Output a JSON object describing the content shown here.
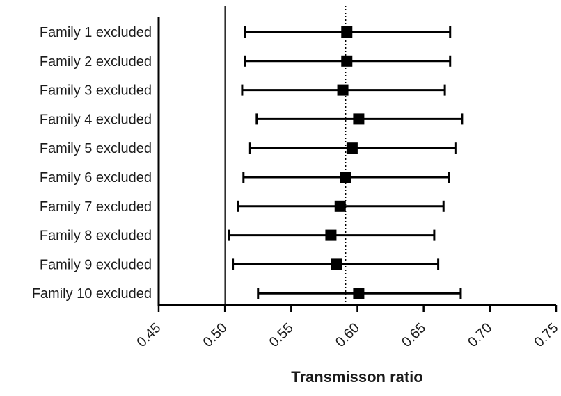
{
  "chart_data": {
    "type": "forest",
    "xlabel": "Transmisson ratio",
    "ylabel": "",
    "xlim": [
      0.45,
      0.75
    ],
    "x_ticks": [
      0.45,
      0.5,
      0.55,
      0.6,
      0.65,
      0.7,
      0.75
    ],
    "x_tick_labels": [
      "0.45",
      "0.50",
      "0.55",
      "0.60",
      "0.65",
      "0.70",
      "0.75"
    ],
    "reference_lines": [
      {
        "value": 0.5,
        "style": "solid"
      },
      {
        "value": 0.591,
        "style": "dotted"
      }
    ],
    "grid": false,
    "categories": [
      "Family 1 excluded",
      "Family 2 excluded",
      "Family 3 excluded",
      "Family 4 excluded",
      "Family 5 excluded",
      "Family 6 excluded",
      "Family 7 excluded",
      "Family 8 excluded",
      "Family 9 excluded",
      "Family 10 excluded"
    ],
    "estimates": [
      0.592,
      0.592,
      0.589,
      0.601,
      0.596,
      0.591,
      0.587,
      0.58,
      0.584,
      0.601
    ],
    "ci_lower": [
      0.515,
      0.515,
      0.513,
      0.524,
      0.519,
      0.514,
      0.51,
      0.503,
      0.506,
      0.525
    ],
    "ci_upper": [
      0.67,
      0.67,
      0.666,
      0.679,
      0.674,
      0.669,
      0.665,
      0.658,
      0.661,
      0.678
    ],
    "marker_color": "#000000",
    "line_color": "#000000"
  }
}
